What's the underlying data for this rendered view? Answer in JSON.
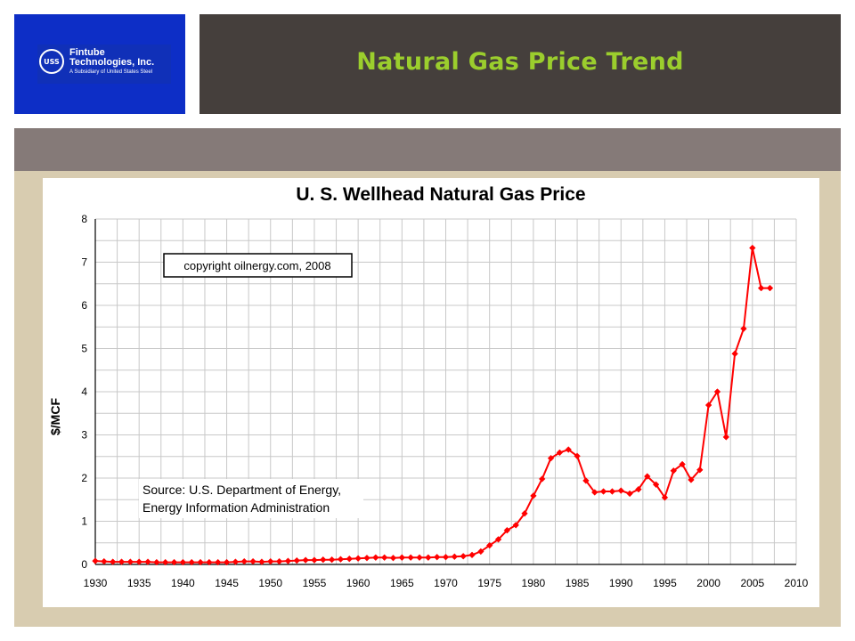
{
  "logo": {
    "badge": "USS",
    "line1": "Fintube",
    "line2": "Technologies, Inc.",
    "subline": "A Subsidiary of United States Steel"
  },
  "slide": {
    "title": "Natural Gas Price Trend"
  },
  "colors": {
    "logo_bg": "#0d2ec6",
    "title_bar": "#453f3c",
    "title_text": "#9bce2d",
    "band": "#857a78",
    "content_bg": "#d8ccb0",
    "series": "#ff0000"
  },
  "chart_data": {
    "type": "line",
    "title": "U. S. Wellhead Natural Gas Price",
    "xlabel": "",
    "ylabel": "$/MCF",
    "xlim": [
      1930,
      2010
    ],
    "ylim": [
      0,
      8
    ],
    "xticks": [
      1930,
      1935,
      1940,
      1945,
      1950,
      1955,
      1960,
      1965,
      1970,
      1975,
      1980,
      1985,
      1990,
      1995,
      2000,
      2005,
      2010
    ],
    "yticks": [
      0,
      1,
      2,
      3,
      4,
      5,
      6,
      7,
      8
    ],
    "grid": true,
    "annotations": [
      {
        "text": "copyright oilnergy.com, 2008",
        "boxed": true,
        "placement": "upper-left"
      },
      {
        "text": "Source: U.S. Department of Energy,",
        "boxed": false,
        "placement": "lower-left"
      },
      {
        "text": "Energy Information Administration",
        "boxed": false,
        "placement": "lower-left"
      }
    ],
    "series": [
      {
        "x": [
          1930,
          1931,
          1932,
          1933,
          1934,
          1935,
          1936,
          1937,
          1938,
          1939,
          1940,
          1941,
          1942,
          1943,
          1944,
          1945,
          1946,
          1947,
          1948,
          1949,
          1950,
          1951,
          1952,
          1953,
          1954,
          1955,
          1956,
          1957,
          1958,
          1959,
          1960,
          1961,
          1962,
          1963,
          1964,
          1965,
          1966,
          1967,
          1968,
          1969,
          1970,
          1971,
          1972,
          1973,
          1974,
          1975,
          1976,
          1977,
          1978,
          1979,
          1980,
          1981,
          1982,
          1983,
          1984,
          1985,
          1986,
          1987,
          1988,
          1989,
          1990,
          1991,
          1992,
          1993,
          1994,
          1995,
          1996,
          1997,
          1998,
          1999,
          2000,
          2001,
          2002,
          2003,
          2004,
          2005,
          2006,
          2007
        ],
        "values": [
          0.08,
          0.07,
          0.06,
          0.06,
          0.06,
          0.06,
          0.06,
          0.05,
          0.05,
          0.05,
          0.05,
          0.05,
          0.05,
          0.05,
          0.05,
          0.05,
          0.06,
          0.07,
          0.07,
          0.06,
          0.07,
          0.07,
          0.08,
          0.09,
          0.1,
          0.1,
          0.11,
          0.11,
          0.12,
          0.13,
          0.14,
          0.15,
          0.16,
          0.16,
          0.15,
          0.16,
          0.16,
          0.16,
          0.16,
          0.17,
          0.17,
          0.18,
          0.19,
          0.22,
          0.3,
          0.44,
          0.58,
          0.79,
          0.91,
          1.18,
          1.59,
          1.98,
          2.46,
          2.59,
          2.66,
          2.51,
          1.94,
          1.67,
          1.69,
          1.69,
          1.71,
          1.64,
          1.74,
          2.04,
          1.85,
          1.55,
          2.17,
          2.32,
          1.96,
          2.19,
          3.69,
          4.0,
          2.95,
          4.88,
          5.46,
          7.33,
          6.4,
          6.4
        ]
      }
    ]
  }
}
